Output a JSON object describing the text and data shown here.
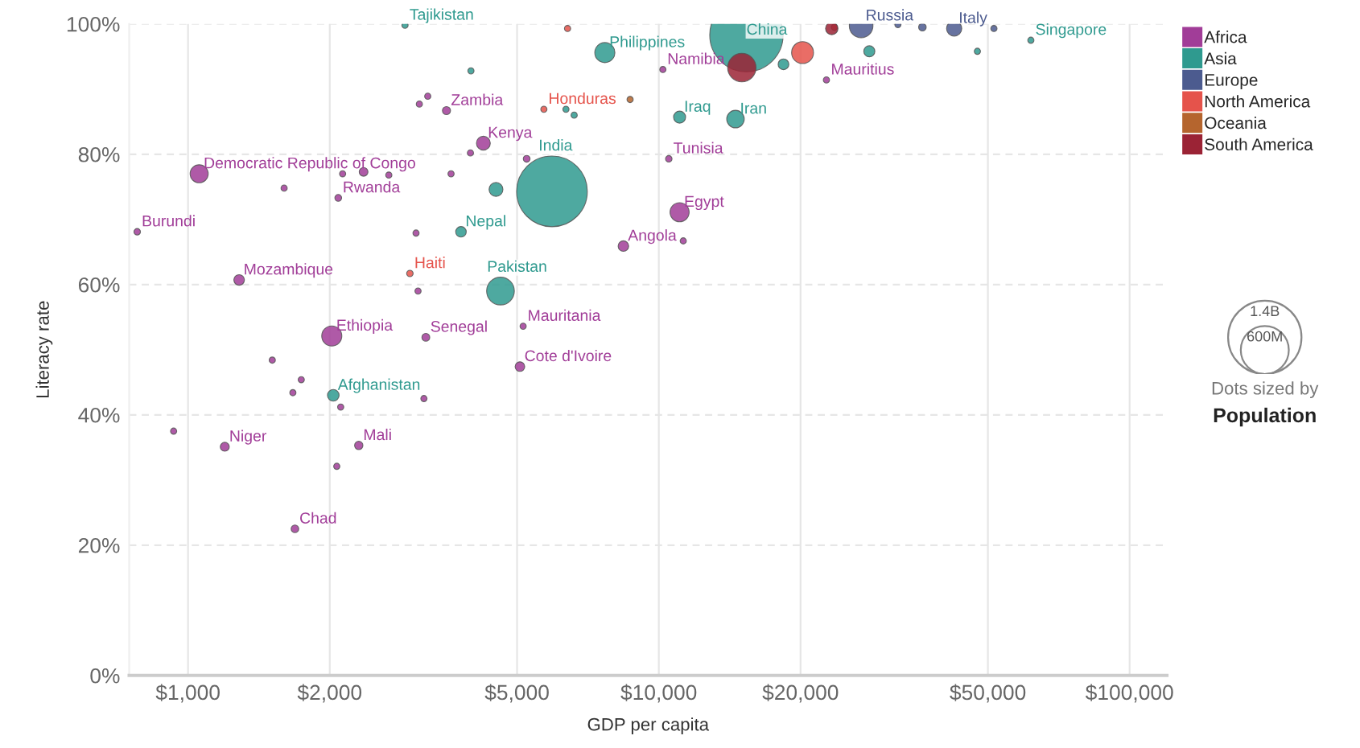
{
  "chart_data": {
    "type": "bubble",
    "xlabel": "GDP per capita",
    "ylabel": "Literacy rate",
    "log": "x",
    "grid": true,
    "legend": "top right",
    "xlim": [
      750,
      120000
    ],
    "ylim": [
      0,
      100
    ],
    "xticks": [
      {
        "value": 1000,
        "label": "$1,000"
      },
      {
        "value": 2000,
        "label": "$2,000"
      },
      {
        "value": 5000,
        "label": "$5,000"
      },
      {
        "value": 10000,
        "label": "$10,000"
      },
      {
        "value": 20000,
        "label": "$20,000"
      },
      {
        "value": 50000,
        "label": "$50,000"
      },
      {
        "value": 100000,
        "label": "$100,000"
      }
    ],
    "yticks": [
      {
        "value": 0,
        "label": "0%"
      },
      {
        "value": 20,
        "label": "20%"
      },
      {
        "value": 40,
        "label": "40%"
      },
      {
        "value": 60,
        "label": "60%"
      },
      {
        "value": 80,
        "label": "80%"
      },
      {
        "value": 100,
        "label": "100%"
      }
    ],
    "size_legend": [
      {
        "value": 1400,
        "label": "1.4B"
      },
      {
        "value": 600,
        "label": "600M"
      }
    ],
    "series": [
      {
        "name": "Africa",
        "color": "#a13d98",
        "x": [
          1056,
          2085,
          780,
          1284,
          4240,
          3540,
          2020,
          3200,
          5150,
          5070,
          1197,
          2305,
          1687,
          10200,
          22700,
          10500,
          11070,
          8410,
          2130,
          2360,
          2670,
          1600,
          3620,
          5240,
          3980,
          3050,
          3080,
          1510,
          1740,
          2110,
          932,
          2070,
          3170,
          11270,
          3100,
          3230,
          1670
        ],
        "values": [
          77.0,
          73.3,
          68.1,
          60.7,
          81.7,
          86.7,
          52.1,
          51.9,
          53.6,
          47.4,
          35.1,
          35.3,
          22.5,
          93.0,
          91.4,
          79.3,
          71.1,
          65.9,
          77.0,
          77.3,
          76.8,
          74.8,
          77.0,
          79.3,
          80.2,
          67.9,
          59.0,
          48.4,
          45.4,
          41.2,
          37.5,
          32.1,
          42.5,
          66.7,
          87.7,
          88.9,
          43.4
        ],
        "sizes": [
          85,
          12,
          11,
          29,
          50,
          17,
          105,
          16,
          10,
          24,
          21,
          18,
          15,
          10,
          10,
          11,
          95,
          29,
          10,
          20,
          10,
          10,
          10,
          12,
          10,
          10,
          10,
          10,
          10,
          10,
          10,
          10,
          10,
          10,
          10,
          10,
          10
        ]
      },
      {
        "name": "Asia",
        "color": "#2f9a8f",
        "x": [
          2890,
          5930,
          15350,
          7680,
          4610,
          3800,
          2035,
          11070,
          14550,
          61700,
          28000,
          6610,
          6350,
          3990,
          4510,
          18400,
          47500
        ],
        "values": [
          99.8,
          74.3,
          98.3,
          95.6,
          59.0,
          68.1,
          43.0,
          85.7,
          85.4,
          97.5,
          95.8,
          86.0,
          86.9,
          92.8,
          74.6,
          93.8,
          95.8
        ],
        "sizes": [
          10,
          1300,
          1400,
          105,
          200,
          29,
          35,
          38,
          80,
          10,
          32,
          10,
          10,
          10,
          50,
          30,
          10
        ]
      },
      {
        "name": "Europe",
        "color": "#4c5b8f",
        "x": [
          26900,
          42400,
          36300,
          32200,
          51500
        ],
        "values": [
          99.7,
          99.3,
          99.5,
          99.9,
          99.3
        ],
        "sizes": [
          145,
          60,
          15,
          10,
          10
        ]
      },
      {
        "name": "North America",
        "color": "#e5534b",
        "x": [
          2960,
          5700,
          20200,
          23600,
          6400
        ],
        "values": [
          61.7,
          86.9,
          95.6,
          99.5,
          99.3
        ],
        "sizes": [
          11,
          10,
          125,
          10,
          10
        ]
      },
      {
        "name": "Oceania",
        "color": "#b5652e",
        "x": [
          8690
        ],
        "values": [
          88.4
        ],
        "sizes": [
          10
        ]
      },
      {
        "name": "South America",
        "color": "#9b2335",
        "x": [
          15010,
          23300
        ],
        "values": [
          93.3,
          99.3
        ],
        "sizes": [
          210,
          40
        ]
      }
    ],
    "annotations": [
      {
        "text": "Democratic Republic of Congo",
        "x": 1056,
        "y": 77.0
      },
      {
        "text": "Rwanda",
        "x": 2085,
        "y": 73.3
      },
      {
        "text": "Burundi",
        "x": 780,
        "y": 68.1
      },
      {
        "text": "Mozambique",
        "x": 1284,
        "y": 60.7
      },
      {
        "text": "Kenya",
        "x": 4240,
        "y": 81.7
      },
      {
        "text": "Zambia",
        "x": 3540,
        "y": 86.7
      },
      {
        "text": "Ethiopia",
        "x": 2020,
        "y": 52.1
      },
      {
        "text": "Senegal",
        "x": 3200,
        "y": 51.9
      },
      {
        "text": "Mauritania",
        "x": 5150,
        "y": 53.6
      },
      {
        "text": "Cote d'Ivoire",
        "x": 5070,
        "y": 47.4
      },
      {
        "text": "Niger",
        "x": 1197,
        "y": 35.1
      },
      {
        "text": "Mali",
        "x": 2305,
        "y": 35.3
      },
      {
        "text": "Chad",
        "x": 1687,
        "y": 22.5
      },
      {
        "text": "Namibia",
        "x": 10200,
        "y": 93.0
      },
      {
        "text": "Mauritius",
        "x": 22700,
        "y": 91.4
      },
      {
        "text": "Tunisia",
        "x": 10500,
        "y": 79.3
      },
      {
        "text": "Egypt",
        "x": 11070,
        "y": 71.1
      },
      {
        "text": "Angola",
        "x": 8410,
        "y": 65.9
      },
      {
        "text": "Tajikistan",
        "x": 2890,
        "y": 99.8
      },
      {
        "text": "India",
        "x": 5930,
        "y": 74.3
      },
      {
        "text": "China",
        "x": 15350,
        "y": 98.3
      },
      {
        "text": "Philippines",
        "x": 7680,
        "y": 95.6
      },
      {
        "text": "Pakistan",
        "x": 4610,
        "y": 59.0
      },
      {
        "text": "Nepal",
        "x": 3800,
        "y": 68.1
      },
      {
        "text": "Afghanistan",
        "x": 2035,
        "y": 43.0
      },
      {
        "text": "Iraq",
        "x": 11070,
        "y": 85.7
      },
      {
        "text": "Iran",
        "x": 14550,
        "y": 85.4
      },
      {
        "text": "Singapore",
        "x": 61700,
        "y": 97.5
      },
      {
        "text": "Russia",
        "x": 26900,
        "y": 99.7
      },
      {
        "text": "Italy",
        "x": 42400,
        "y": 99.3
      },
      {
        "text": "Haiti",
        "x": 2960,
        "y": 61.7
      },
      {
        "text": "Honduras",
        "x": 5700,
        "y": 86.9
      },
      "Dots sized by",
      "Population"
    ]
  }
}
